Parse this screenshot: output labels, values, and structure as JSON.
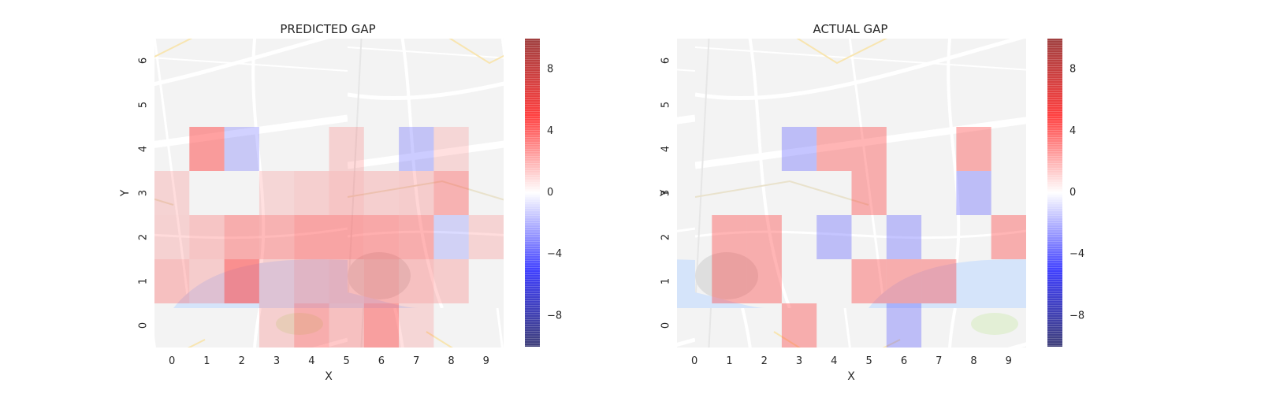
{
  "chart_data": [
    {
      "type": "heatmap",
      "title": "PREDICTED GAP",
      "xlabel": "X",
      "ylabel": "Y",
      "x_ticks": [
        "0",
        "1",
        "2",
        "3",
        "4",
        "5",
        "6",
        "7",
        "8",
        "9"
      ],
      "y_ticks": [
        "0",
        "1",
        "2",
        "3",
        "4",
        "5",
        "6"
      ],
      "clim": [
        -10,
        10
      ],
      "colorbar_ticks": [
        "8",
        "4",
        "0",
        "−4",
        "−8"
      ],
      "colorbar_values": [
        8,
        4,
        0,
        -4,
        -8
      ],
      "colormap": "seismic",
      "grid": false,
      "background": "street map",
      "cells": [
        {
          "x": 1,
          "y": 4,
          "v": 2.8
        },
        {
          "x": 2,
          "y": 4,
          "v": -1.0
        },
        {
          "x": 5,
          "y": 4,
          "v": 0.5
        },
        {
          "x": 7,
          "y": 4,
          "v": -1.2
        },
        {
          "x": 8,
          "y": 4,
          "v": 0.3
        },
        {
          "x": 0,
          "y": 3,
          "v": 0.4
        },
        {
          "x": 3,
          "y": 3,
          "v": 0.3
        },
        {
          "x": 4,
          "y": 3,
          "v": 0.6
        },
        {
          "x": 5,
          "y": 3,
          "v": 1.0
        },
        {
          "x": 6,
          "y": 3,
          "v": 0.6
        },
        {
          "x": 7,
          "y": 3,
          "v": 0.7
        },
        {
          "x": 8,
          "y": 3,
          "v": 1.8
        },
        {
          "x": 0,
          "y": 2,
          "v": 0.5
        },
        {
          "x": 1,
          "y": 2,
          "v": 1.0
        },
        {
          "x": 2,
          "y": 2,
          "v": 2.0
        },
        {
          "x": 3,
          "y": 2,
          "v": 1.8
        },
        {
          "x": 4,
          "y": 2,
          "v": 2.4
        },
        {
          "x": 5,
          "y": 2,
          "v": 2.4
        },
        {
          "x": 6,
          "y": 2,
          "v": 2.2
        },
        {
          "x": 7,
          "y": 2,
          "v": 2.0
        },
        {
          "x": 8,
          "y": 2,
          "v": -0.6
        },
        {
          "x": 9,
          "y": 2,
          "v": 0.4
        },
        {
          "x": 0,
          "y": 1,
          "v": 1.2
        },
        {
          "x": 1,
          "y": 1,
          "v": 0.7
        },
        {
          "x": 2,
          "y": 1,
          "v": 3.5
        },
        {
          "x": 3,
          "y": 1,
          "v": 0.6
        },
        {
          "x": 4,
          "y": 1,
          "v": 1.2
        },
        {
          "x": 5,
          "y": 1,
          "v": 1.4
        },
        {
          "x": 6,
          "y": 1,
          "v": 1.8
        },
        {
          "x": 7,
          "y": 1,
          "v": 1.2
        },
        {
          "x": 8,
          "y": 1,
          "v": 0.7
        },
        {
          "x": 3,
          "y": 0,
          "v": 0.6
        },
        {
          "x": 4,
          "y": 0,
          "v": 2.0
        },
        {
          "x": 5,
          "y": 0,
          "v": 1.2
        },
        {
          "x": 6,
          "y": 0,
          "v": 2.6
        },
        {
          "x": 7,
          "y": 0,
          "v": 0.3
        }
      ]
    },
    {
      "type": "heatmap",
      "title": "ACTUAL GAP",
      "xlabel": "X",
      "ylabel": "Y",
      "x_ticks": [
        "0",
        "1",
        "2",
        "3",
        "4",
        "5",
        "6",
        "7",
        "8",
        "9"
      ],
      "y_ticks": [
        "0",
        "1",
        "2",
        "3",
        "4",
        "5",
        "6"
      ],
      "clim": [
        -10,
        10
      ],
      "colorbar_ticks": [
        "8",
        "4",
        "0",
        "−4",
        "−8"
      ],
      "colorbar_values": [
        8,
        4,
        0,
        -4,
        -8
      ],
      "colormap": "seismic",
      "grid": false,
      "background": "street map",
      "cells": [
        {
          "x": 3,
          "y": 4,
          "v": -1.5
        },
        {
          "x": 4,
          "y": 4,
          "v": 2.0
        },
        {
          "x": 5,
          "y": 4,
          "v": 2.0
        },
        {
          "x": 8,
          "y": 4,
          "v": 2.0
        },
        {
          "x": 5,
          "y": 3,
          "v": 2.0
        },
        {
          "x": 8,
          "y": 3,
          "v": -1.5
        },
        {
          "x": 1,
          "y": 2,
          "v": 2.0
        },
        {
          "x": 2,
          "y": 2,
          "v": 2.0
        },
        {
          "x": 4,
          "y": 2,
          "v": -1.5
        },
        {
          "x": 6,
          "y": 2,
          "v": -1.5
        },
        {
          "x": 9,
          "y": 2,
          "v": 2.0
        },
        {
          "x": 1,
          "y": 1,
          "v": 2.0
        },
        {
          "x": 2,
          "y": 1,
          "v": 2.0
        },
        {
          "x": 5,
          "y": 1,
          "v": 2.0
        },
        {
          "x": 6,
          "y": 1,
          "v": 2.0
        },
        {
          "x": 7,
          "y": 1,
          "v": 2.0
        },
        {
          "x": 3,
          "y": 0,
          "v": 2.0
        },
        {
          "x": 6,
          "y": 0,
          "v": -1.5
        }
      ]
    }
  ]
}
